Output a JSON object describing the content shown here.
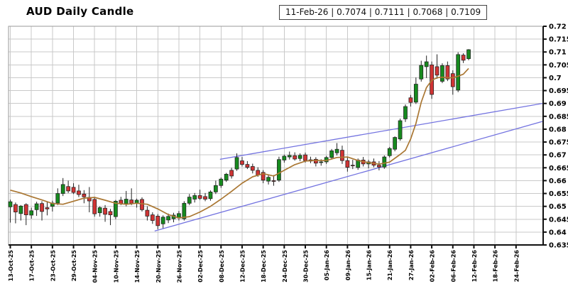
{
  "title": "AUD Daily Candle",
  "legend": {
    "text": "11-Feb-26 | 0.7074 | 0.7111 | 0.7068 | 0.7109",
    "date": "11-Feb-26",
    "open": "0.7074",
    "high": "0.7111",
    "low": "0.7068",
    "close": "0.7109"
  },
  "chart_data": {
    "type": "candlestick",
    "title": "AUD Daily Candle",
    "ylim": [
      0.635,
      0.72
    ],
    "grid": true,
    "y_ticks": [
      {
        "v": 0.72,
        "label": "0.72"
      },
      {
        "v": 0.715,
        "label": "0.715"
      },
      {
        "v": 0.71,
        "label": "0.71"
      },
      {
        "v": 0.705,
        "label": "0.705"
      },
      {
        "v": 0.7,
        "label": "0.7"
      },
      {
        "v": 0.695,
        "label": "0.695"
      },
      {
        "v": 0.69,
        "label": "0.69"
      },
      {
        "v": 0.685,
        "label": "0.685"
      },
      {
        "v": 0.68,
        "label": "0.68"
      },
      {
        "v": 0.675,
        "label": "0.675"
      },
      {
        "v": 0.67,
        "label": "0.67"
      },
      {
        "v": 0.665,
        "label": "0.665"
      },
      {
        "v": 0.66,
        "label": "0.66"
      },
      {
        "v": 0.655,
        "label": "0.655"
      },
      {
        "v": 0.65,
        "label": "0.65"
      },
      {
        "v": 0.645,
        "label": "0.645"
      },
      {
        "v": 0.64,
        "label": "0.64"
      },
      {
        "v": 0.635,
        "label": "0.635"
      }
    ],
    "x_ticks": [
      {
        "index": 0,
        "label": "13-Oct-25"
      },
      {
        "index": 4,
        "label": "17-Oct-25"
      },
      {
        "index": 8,
        "label": "23-Oct-25"
      },
      {
        "index": 12,
        "label": "29-Oct-25"
      },
      {
        "index": 16,
        "label": "04-Nov-25"
      },
      {
        "index": 20,
        "label": "10-Nov-25"
      },
      {
        "index": 24,
        "label": "14-Nov-25"
      },
      {
        "index": 28,
        "label": "20-Nov-25"
      },
      {
        "index": 32,
        "label": "26-Nov-25"
      },
      {
        "index": 36,
        "label": "02-Dec-25"
      },
      {
        "index": 40,
        "label": "08-Dec-25"
      },
      {
        "index": 44,
        "label": "12-Dec-25"
      },
      {
        "index": 48,
        "label": "18-Dec-25"
      },
      {
        "index": 52,
        "label": "24-Dec-25"
      },
      {
        "index": 56,
        "label": "30-Dec-25"
      },
      {
        "index": 60,
        "label": "05-Jan-26"
      },
      {
        "index": 64,
        "label": "09-Jan-26"
      },
      {
        "index": 68,
        "label": "15-Jan-26"
      },
      {
        "index": 72,
        "label": "21-Jan-26"
      },
      {
        "index": 76,
        "label": "27-Jan-26"
      },
      {
        "index": 80,
        "label": "02-Feb-26"
      },
      {
        "index": 84,
        "label": "06-Feb-26"
      },
      {
        "index": 88,
        "label": "12-Feb-26"
      },
      {
        "index": 92,
        "label": "18-Feb-26"
      },
      {
        "index": 96,
        "label": "24-Feb-26"
      }
    ],
    "candles": [
      [
        "13-Oct-25",
        0.6498,
        0.6526,
        0.6437,
        0.6518
      ],
      [
        "14-Oct-25",
        0.6507,
        0.6515,
        0.6434,
        0.6478
      ],
      [
        "15-Oct-25",
        0.6472,
        0.6505,
        0.6445,
        0.6501
      ],
      [
        "16-Oct-25",
        0.6507,
        0.6512,
        0.6427,
        0.6467
      ],
      [
        "17-Oct-25",
        0.6466,
        0.6495,
        0.6452,
        0.6483
      ],
      [
        "20-Oct-25",
        0.6487,
        0.6518,
        0.6463,
        0.651
      ],
      [
        "21-Oct-25",
        0.6511,
        0.652,
        0.6445,
        0.648
      ],
      [
        "22-Oct-25",
        0.6495,
        0.652,
        0.6465,
        0.649
      ],
      [
        "23-Oct-25",
        0.65,
        0.6522,
        0.648,
        0.6513
      ],
      [
        "24-Oct-25",
        0.6513,
        0.657,
        0.6505,
        0.655
      ],
      [
        "27-Oct-25",
        0.655,
        0.661,
        0.654,
        0.6585
      ],
      [
        "28-Oct-25",
        0.6577,
        0.66,
        0.6552,
        0.656
      ],
      [
        "29-Oct-25",
        0.6574,
        0.659,
        0.6548,
        0.6554
      ],
      [
        "30-Oct-25",
        0.656,
        0.6584,
        0.6536,
        0.6546
      ],
      [
        "31-Oct-25",
        0.6548,
        0.6563,
        0.6512,
        0.6537
      ],
      [
        "03-Nov-25",
        0.6535,
        0.6575,
        0.6477,
        0.6521
      ],
      [
        "04-Nov-25",
        0.6527,
        0.6537,
        0.646,
        0.6471
      ],
      [
        "05-Nov-25",
        0.6475,
        0.65,
        0.646,
        0.6495
      ],
      [
        "06-Nov-25",
        0.6493,
        0.6505,
        0.644,
        0.6469
      ],
      [
        "07-Nov-25",
        0.648,
        0.649,
        0.6427,
        0.6467
      ],
      [
        "10-Nov-25",
        0.646,
        0.6525,
        0.645,
        0.652
      ],
      [
        "11-Nov-25",
        0.6524,
        0.6537,
        0.6505,
        0.651
      ],
      [
        "12-Nov-25",
        0.651,
        0.656,
        0.65,
        0.6528
      ],
      [
        "13-Nov-25",
        0.6525,
        0.657,
        0.6505,
        0.6512
      ],
      [
        "14-Nov-25",
        0.6512,
        0.653,
        0.6495,
        0.6524
      ],
      [
        "17-Nov-25",
        0.6527,
        0.6535,
        0.648,
        0.6487
      ],
      [
        "18-Nov-25",
        0.6485,
        0.65,
        0.6445,
        0.6462
      ],
      [
        "19-Nov-25",
        0.6467,
        0.6477,
        0.6432,
        0.6445
      ],
      [
        "20-Nov-25",
        0.6462,
        0.647,
        0.6411,
        0.6425
      ],
      [
        "21-Nov-25",
        0.6432,
        0.6465,
        0.6415,
        0.6458
      ],
      [
        "24-Nov-25",
        0.6447,
        0.6472,
        0.6435,
        0.6461
      ],
      [
        "25-Nov-25",
        0.6452,
        0.6475,
        0.6438,
        0.6466
      ],
      [
        "26-Nov-25",
        0.6455,
        0.6482,
        0.6445,
        0.6472
      ],
      [
        "27-Nov-25",
        0.6452,
        0.652,
        0.6445,
        0.6512
      ],
      [
        "28-Nov-25",
        0.6512,
        0.6548,
        0.6505,
        0.6536
      ],
      [
        "01-Dec-25",
        0.6528,
        0.6552,
        0.6515,
        0.6542
      ],
      [
        "02-Dec-25",
        0.6542,
        0.6565,
        0.6525,
        0.6531
      ],
      [
        "03-Dec-25",
        0.6538,
        0.6552,
        0.652,
        0.6528
      ],
      [
        "04-Dec-25",
        0.653,
        0.6562,
        0.6522,
        0.6556
      ],
      [
        "05-Dec-25",
        0.6556,
        0.66,
        0.6548,
        0.6581
      ],
      [
        "08-Dec-25",
        0.6581,
        0.6612,
        0.6572,
        0.6606
      ],
      [
        "09-Dec-25",
        0.6602,
        0.663,
        0.6595,
        0.6625
      ],
      [
        "10-Dec-25",
        0.664,
        0.665,
        0.6608,
        0.6618
      ],
      [
        "11-Dec-25",
        0.6645,
        0.6706,
        0.6638,
        0.669
      ],
      [
        "12-Dec-25",
        0.6677,
        0.6692,
        0.6655,
        0.6663
      ],
      [
        "15-Dec-25",
        0.6663,
        0.6676,
        0.6645,
        0.6652
      ],
      [
        "16-Dec-25",
        0.6655,
        0.6666,
        0.6628,
        0.664
      ],
      [
        "17-Dec-25",
        0.664,
        0.6652,
        0.6615,
        0.6622
      ],
      [
        "18-Dec-25",
        0.6632,
        0.6641,
        0.659,
        0.6602
      ],
      [
        "19-Dec-25",
        0.6598,
        0.6621,
        0.6585,
        0.6613
      ],
      [
        "22-Dec-25",
        0.66,
        0.6622,
        0.658,
        0.6597
      ],
      [
        "23-Dec-25",
        0.6602,
        0.6693,
        0.6595,
        0.6682
      ],
      [
        "24-Dec-25",
        0.668,
        0.6701,
        0.667,
        0.6695
      ],
      [
        "25-Dec-25",
        0.6692,
        0.6713,
        0.6682,
        0.6698
      ],
      [
        "26-Dec-25",
        0.6697,
        0.671,
        0.6678,
        0.6684
      ],
      [
        "29-Dec-25",
        0.6686,
        0.6706,
        0.6676,
        0.6698
      ],
      [
        "30-Dec-25",
        0.67,
        0.6709,
        0.667,
        0.6678
      ],
      [
        "31-Dec-25",
        0.6681,
        0.6693,
        0.6668,
        0.6676
      ],
      [
        "01-Jan-26",
        0.6683,
        0.6691,
        0.6655,
        0.6668
      ],
      [
        "02-Jan-26",
        0.667,
        0.6683,
        0.6658,
        0.6673
      ],
      [
        "05-Jan-26",
        0.6673,
        0.6696,
        0.6665,
        0.669
      ],
      [
        "06-Jan-26",
        0.669,
        0.6723,
        0.6682,
        0.6716
      ],
      [
        "07-Jan-26",
        0.6708,
        0.6746,
        0.6698,
        0.6722
      ],
      [
        "08-Jan-26",
        0.6718,
        0.6736,
        0.6665,
        0.6678
      ],
      [
        "09-Jan-26",
        0.6678,
        0.669,
        0.6635,
        0.6652
      ],
      [
        "12-Jan-26",
        0.666,
        0.6681,
        0.6645,
        0.6658
      ],
      [
        "13-Jan-26",
        0.6651,
        0.6686,
        0.6642,
        0.668
      ],
      [
        "14-Jan-26",
        0.668,
        0.6692,
        0.6655,
        0.6665
      ],
      [
        "15-Jan-26",
        0.6665,
        0.6681,
        0.6648,
        0.6673
      ],
      [
        "16-Jan-26",
        0.6673,
        0.6686,
        0.6652,
        0.666
      ],
      [
        "19-Jan-26",
        0.666,
        0.6676,
        0.664,
        0.6653
      ],
      [
        "20-Jan-26",
        0.6653,
        0.6698,
        0.6646,
        0.6692
      ],
      [
        "21-Jan-26",
        0.6697,
        0.6731,
        0.669,
        0.6725
      ],
      [
        "22-Jan-26",
        0.6722,
        0.6772,
        0.6714,
        0.6768
      ],
      [
        "23-Jan-26",
        0.6762,
        0.6841,
        0.6755,
        0.6833
      ],
      [
        "26-Jan-26",
        0.684,
        0.6896,
        0.6828,
        0.6888
      ],
      [
        "27-Jan-26",
        0.6922,
        0.6933,
        0.6888,
        0.6904
      ],
      [
        "28-Jan-26",
        0.6905,
        0.7001,
        0.6898,
        0.6975
      ],
      [
        "29-Jan-26",
        0.6995,
        0.7066,
        0.6985,
        0.7048
      ],
      [
        "30-Jan-26",
        0.7043,
        0.7086,
        0.6999,
        0.7062
      ],
      [
        "02-Feb-26",
        0.705,
        0.7063,
        0.6918,
        0.6935
      ],
      [
        "03-Feb-26",
        0.7043,
        0.7091,
        0.6996,
        0.701
      ],
      [
        "04-Feb-26",
        0.6986,
        0.7056,
        0.6979,
        0.7047
      ],
      [
        "05-Feb-26",
        0.7047,
        0.7063,
        0.6987,
        0.6995
      ],
      [
        "06-Feb-26",
        0.7016,
        0.7029,
        0.6934,
        0.6965
      ],
      [
        "09-Feb-26",
        0.6952,
        0.7099,
        0.6944,
        0.709
      ],
      [
        "10-Feb-26",
        0.7088,
        0.7095,
        0.7057,
        0.7068
      ],
      [
        "11-Feb-26",
        0.7074,
        0.7111,
        0.7068,
        0.7109
      ]
    ],
    "ma_points": [
      [
        0,
        0.6563
      ],
      [
        2,
        0.6552
      ],
      [
        4,
        0.6538
      ],
      [
        6,
        0.6525
      ],
      [
        8,
        0.6511
      ],
      [
        10,
        0.6508
      ],
      [
        12,
        0.652
      ],
      [
        14,
        0.6532
      ],
      [
        16,
        0.6535
      ],
      [
        18,
        0.6524
      ],
      [
        20,
        0.6512
      ],
      [
        22,
        0.6508
      ],
      [
        24,
        0.6512
      ],
      [
        26,
        0.6508
      ],
      [
        28,
        0.649
      ],
      [
        30,
        0.6468
      ],
      [
        32,
        0.6455
      ],
      [
        34,
        0.646
      ],
      [
        36,
        0.6478
      ],
      [
        38,
        0.65
      ],
      [
        40,
        0.6528
      ],
      [
        42,
        0.6558
      ],
      [
        44,
        0.659
      ],
      [
        46,
        0.6615
      ],
      [
        48,
        0.6627
      ],
      [
        50,
        0.6618
      ],
      [
        52,
        0.664
      ],
      [
        54,
        0.6662
      ],
      [
        56,
        0.6676
      ],
      [
        58,
        0.6679
      ],
      [
        60,
        0.6678
      ],
      [
        62,
        0.669
      ],
      [
        64,
        0.6692
      ],
      [
        66,
        0.6678
      ],
      [
        68,
        0.667
      ],
      [
        70,
        0.6664
      ],
      [
        72,
        0.6672
      ],
      [
        74,
        0.6702
      ],
      [
        75,
        0.6718
      ],
      [
        76,
        0.6762
      ],
      [
        77,
        0.6822
      ],
      [
        78,
        0.6905
      ],
      [
        79,
        0.6962
      ],
      [
        80,
        0.699
      ],
      [
        81,
        0.7
      ],
      [
        82,
        0.7002
      ],
      [
        83,
        0.7
      ],
      [
        84,
        0.7
      ],
      [
        85,
        0.7006
      ],
      [
        86,
        0.7014
      ],
      [
        87,
        0.7036
      ]
    ],
    "trendlines": [
      {
        "name": "channel-lower",
        "from_index": 27.4,
        "from_price": 0.6404,
        "to_index": 101,
        "to_price": 0.683
      },
      {
        "name": "channel-upper",
        "from_index": 39.8,
        "from_price": 0.6683,
        "to_index": 101,
        "to_price": 0.69
      }
    ],
    "colors": {
      "up": "#168a1e",
      "down": "#d03434",
      "candle_outline": "#222222",
      "wick": "#222222",
      "ma": "#aa7733",
      "trendline": "#7373e0",
      "grid": "#c9c9c9",
      "border": "#999999",
      "axis": "#111111",
      "background": "#ffffff",
      "text": "#000000"
    }
  }
}
